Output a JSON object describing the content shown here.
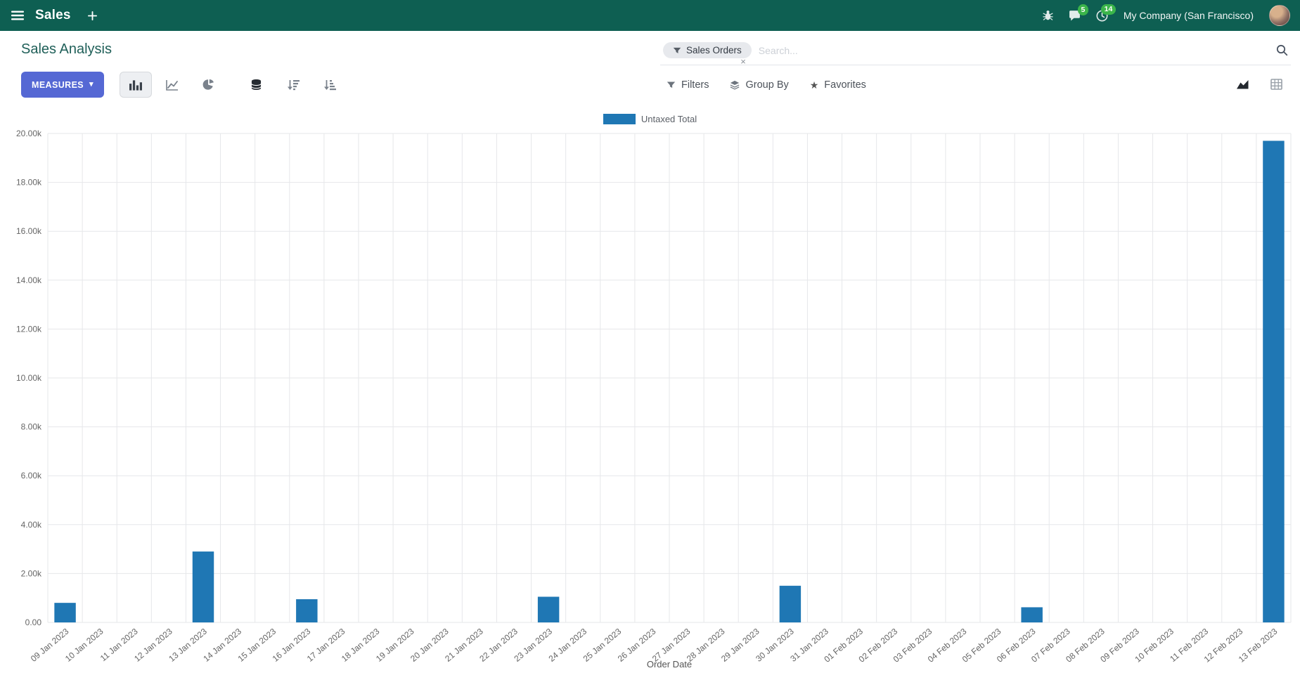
{
  "colors": {
    "navbar_bg": "#0e5f52",
    "primary_button": "#5568d4",
    "title_color": "#1f5f58",
    "badge_green": "#3bb54a"
  },
  "icons": {
    "caret_down": "▾",
    "star": "★"
  },
  "navbar": {
    "app_name": "Sales",
    "messages_badge": "5",
    "activities_badge": "14",
    "company": "My Company (San Francisco)"
  },
  "control_panel": {
    "title": "Sales Analysis",
    "search": {
      "facet_label": "Sales Orders",
      "facet_remove": "×",
      "placeholder": "Search..."
    },
    "measures_label": "MEASURES",
    "filters_label": "Filters",
    "group_by_label": "Group By",
    "favorites_label": "Favorites"
  },
  "chart_data": {
    "type": "bar",
    "title": "",
    "legend": [
      "Untaxed Total"
    ],
    "series_color": "#1f77b4",
    "xlabel": "Order Date",
    "ylabel": "",
    "ylim": [
      0,
      20000
    ],
    "ytick_step": 2000,
    "ytick_labels": [
      "0.00",
      "2.00k",
      "4.00k",
      "6.00k",
      "8.00k",
      "10.00k",
      "12.00k",
      "14.00k",
      "16.00k",
      "18.00k",
      "20.00k"
    ],
    "grid": true,
    "xtick_rotation": -40,
    "legend_position": "top",
    "categories": [
      "09 Jan 2023",
      "10 Jan 2023",
      "11 Jan 2023",
      "12 Jan 2023",
      "13 Jan 2023",
      "14 Jan 2023",
      "15 Jan 2023",
      "16 Jan 2023",
      "17 Jan 2023",
      "18 Jan 2023",
      "19 Jan 2023",
      "20 Jan 2023",
      "21 Jan 2023",
      "22 Jan 2023",
      "23 Jan 2023",
      "24 Jan 2023",
      "25 Jan 2023",
      "26 Jan 2023",
      "27 Jan 2023",
      "28 Jan 2023",
      "29 Jan 2023",
      "30 Jan 2023",
      "31 Jan 2023",
      "01 Feb 2023",
      "02 Feb 2023",
      "03 Feb 2023",
      "04 Feb 2023",
      "05 Feb 2023",
      "06 Feb 2023",
      "07 Feb 2023",
      "08 Feb 2023",
      "09 Feb 2023",
      "10 Feb 2023",
      "11 Feb 2023",
      "12 Feb 2023",
      "13 Feb 2023"
    ],
    "values": [
      800,
      0,
      0,
      0,
      2900,
      0,
      0,
      950,
      0,
      0,
      0,
      0,
      0,
      0,
      1050,
      0,
      0,
      0,
      0,
      0,
      0,
      1500,
      0,
      0,
      0,
      0,
      0,
      0,
      620,
      0,
      0,
      0,
      0,
      0,
      0,
      19700
    ]
  }
}
